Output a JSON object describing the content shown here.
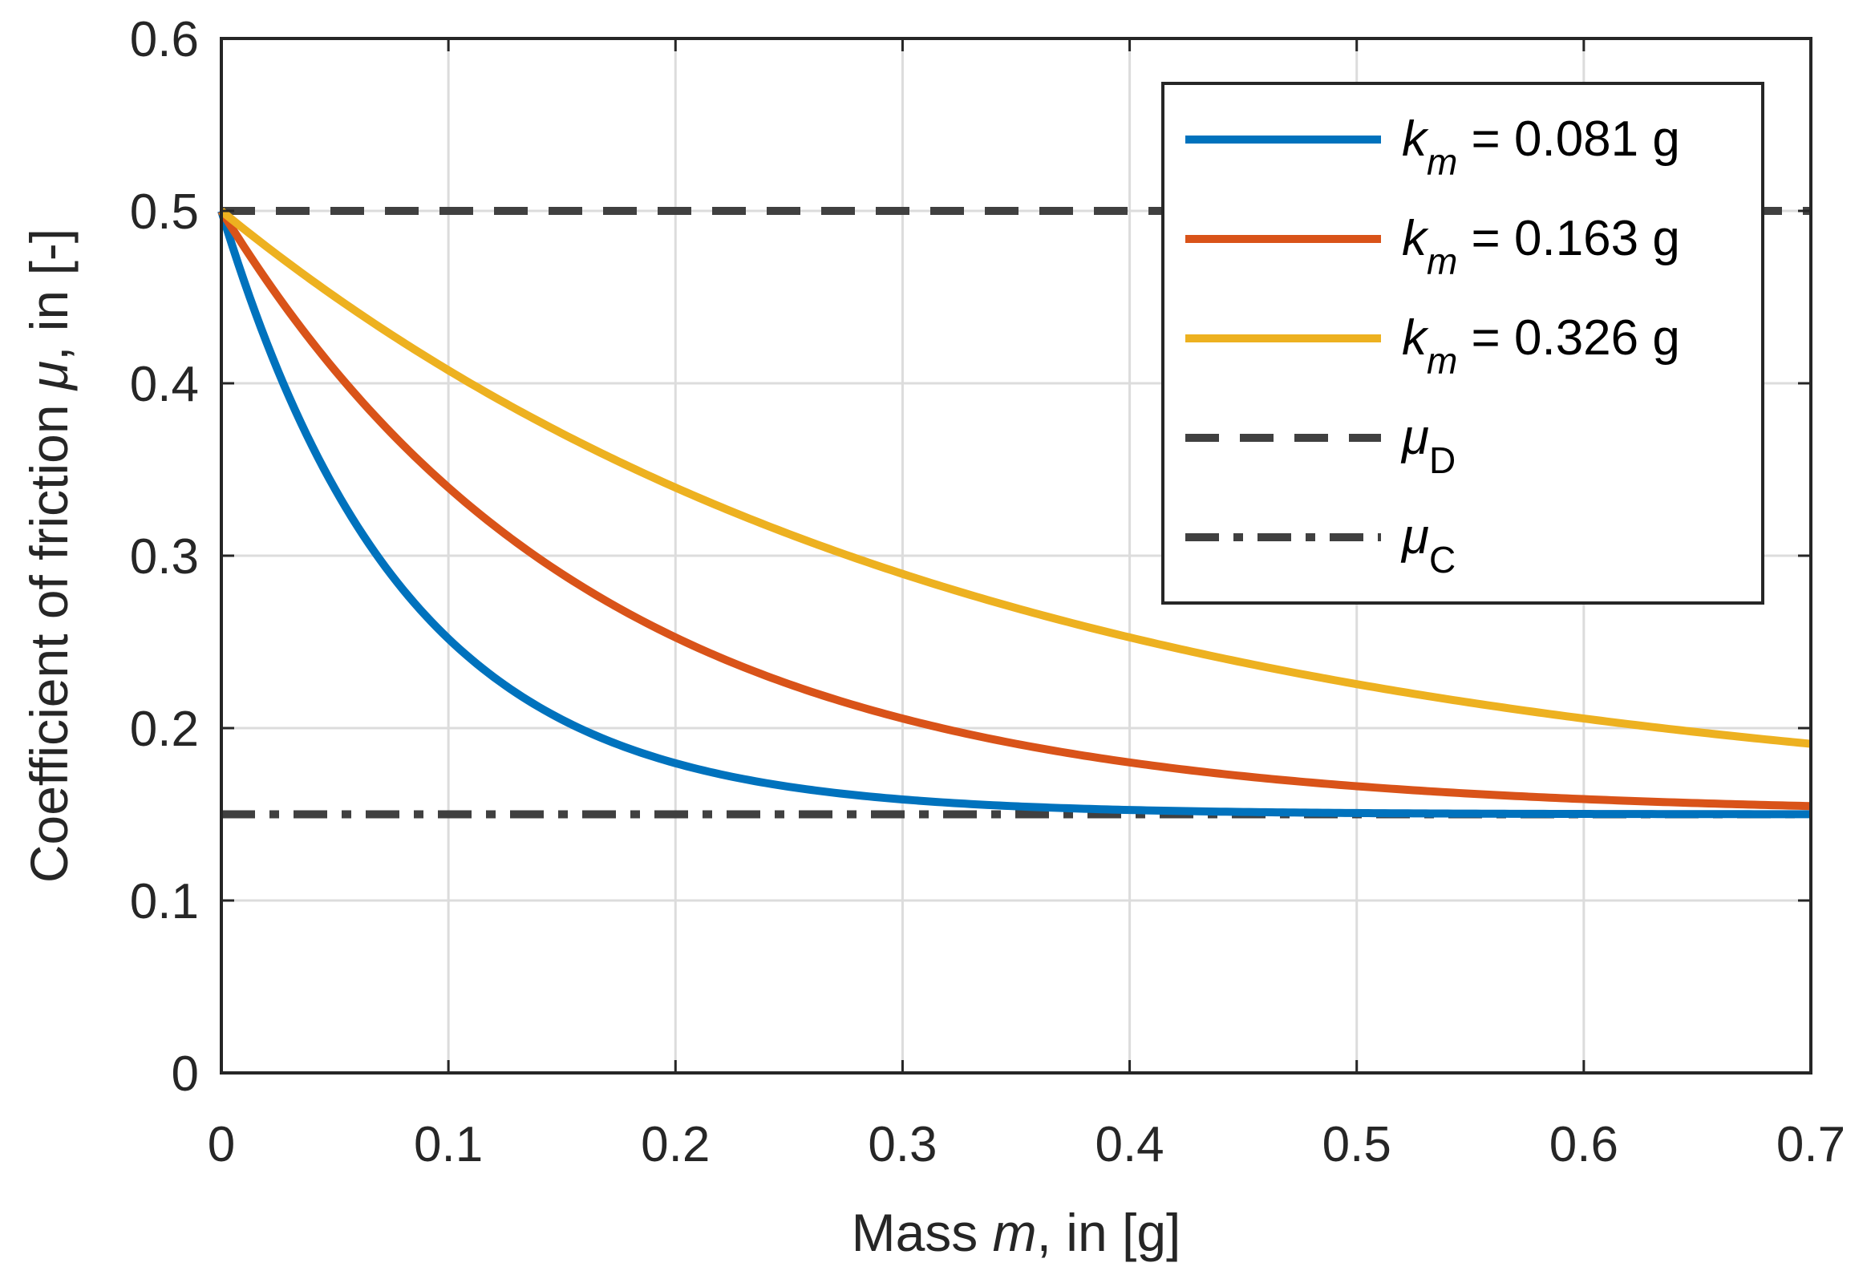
{
  "chart_data": {
    "type": "line",
    "xlabel": {
      "pre": "Mass ",
      "var": "m",
      "post": ", in [g]"
    },
    "ylabel": {
      "pre": "Coefficient of friction ",
      "var": "μ",
      "post": ", in [-]"
    },
    "xlim": [
      0,
      0.7
    ],
    "ylim": [
      0,
      0.6
    ],
    "xticks": [
      "0",
      "0.1",
      "0.2",
      "0.3",
      "0.4",
      "0.5",
      "0.6",
      "0.7"
    ],
    "yticks": [
      "0",
      "0.1",
      "0.2",
      "0.3",
      "0.4",
      "0.5",
      "0.6"
    ],
    "grid": true,
    "legend_position": "top-right",
    "model": {
      "mu_start": 0.5,
      "mu_end": 0.15
    },
    "series": [
      {
        "name": "0.081",
        "var": "k",
        "sub": "m",
        "eq": " = ",
        "unit": " g",
        "km": 0.081,
        "color": "#0072BD",
        "style": "solid"
      },
      {
        "name": "0.163",
        "var": "k",
        "sub": "m",
        "eq": " = ",
        "unit": " g",
        "km": 0.163,
        "color": "#D95319",
        "style": "solid"
      },
      {
        "name": "0.326",
        "var": "k",
        "sub": "m",
        "eq": " = ",
        "unit": " g",
        "km": 0.326,
        "color": "#EDB120",
        "style": "solid"
      }
    ],
    "reference_lines": [
      {
        "var": "μ",
        "sub": "D",
        "y": 0.5,
        "color": "#404040",
        "style": "dashed"
      },
      {
        "var": "μ",
        "sub": "C",
        "y": 0.15,
        "color": "#404040",
        "style": "dashdot"
      }
    ]
  }
}
